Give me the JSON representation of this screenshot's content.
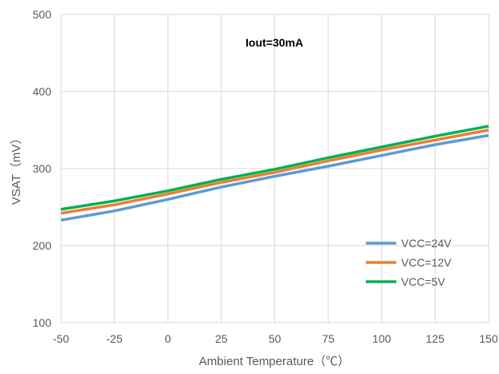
{
  "chart_data": {
    "type": "line",
    "title": "",
    "annotation": "Iout=30mA",
    "xlabel": "Ambient Temperature（℃）",
    "ylabel": "VSAT（mV）",
    "xlim": [
      -50,
      150
    ],
    "ylim": [
      100,
      500
    ],
    "xticks": [
      -50,
      -25,
      0,
      25,
      50,
      75,
      100,
      125,
      150
    ],
    "yticks": [
      100,
      200,
      300,
      400,
      500
    ],
    "grid": true,
    "legend_position": "bottom-right",
    "x": [
      -50,
      -25,
      0,
      25,
      50,
      75,
      100,
      125,
      150
    ],
    "series": [
      {
        "name": "VCC=24V",
        "color": "#5b9bd5",
        "values": [
          233,
          245,
          260,
          276,
          290,
          303,
          317,
          331,
          343
        ]
      },
      {
        "name": "VCC=12V",
        "color": "#ed7d31",
        "values": [
          242,
          253,
          267,
          282,
          295,
          310,
          324,
          337,
          350
        ]
      },
      {
        "name": "VCC=5V",
        "color": "#00b050",
        "values": [
          247,
          258,
          271,
          286,
          299,
          314,
          328,
          342,
          355
        ]
      }
    ]
  }
}
